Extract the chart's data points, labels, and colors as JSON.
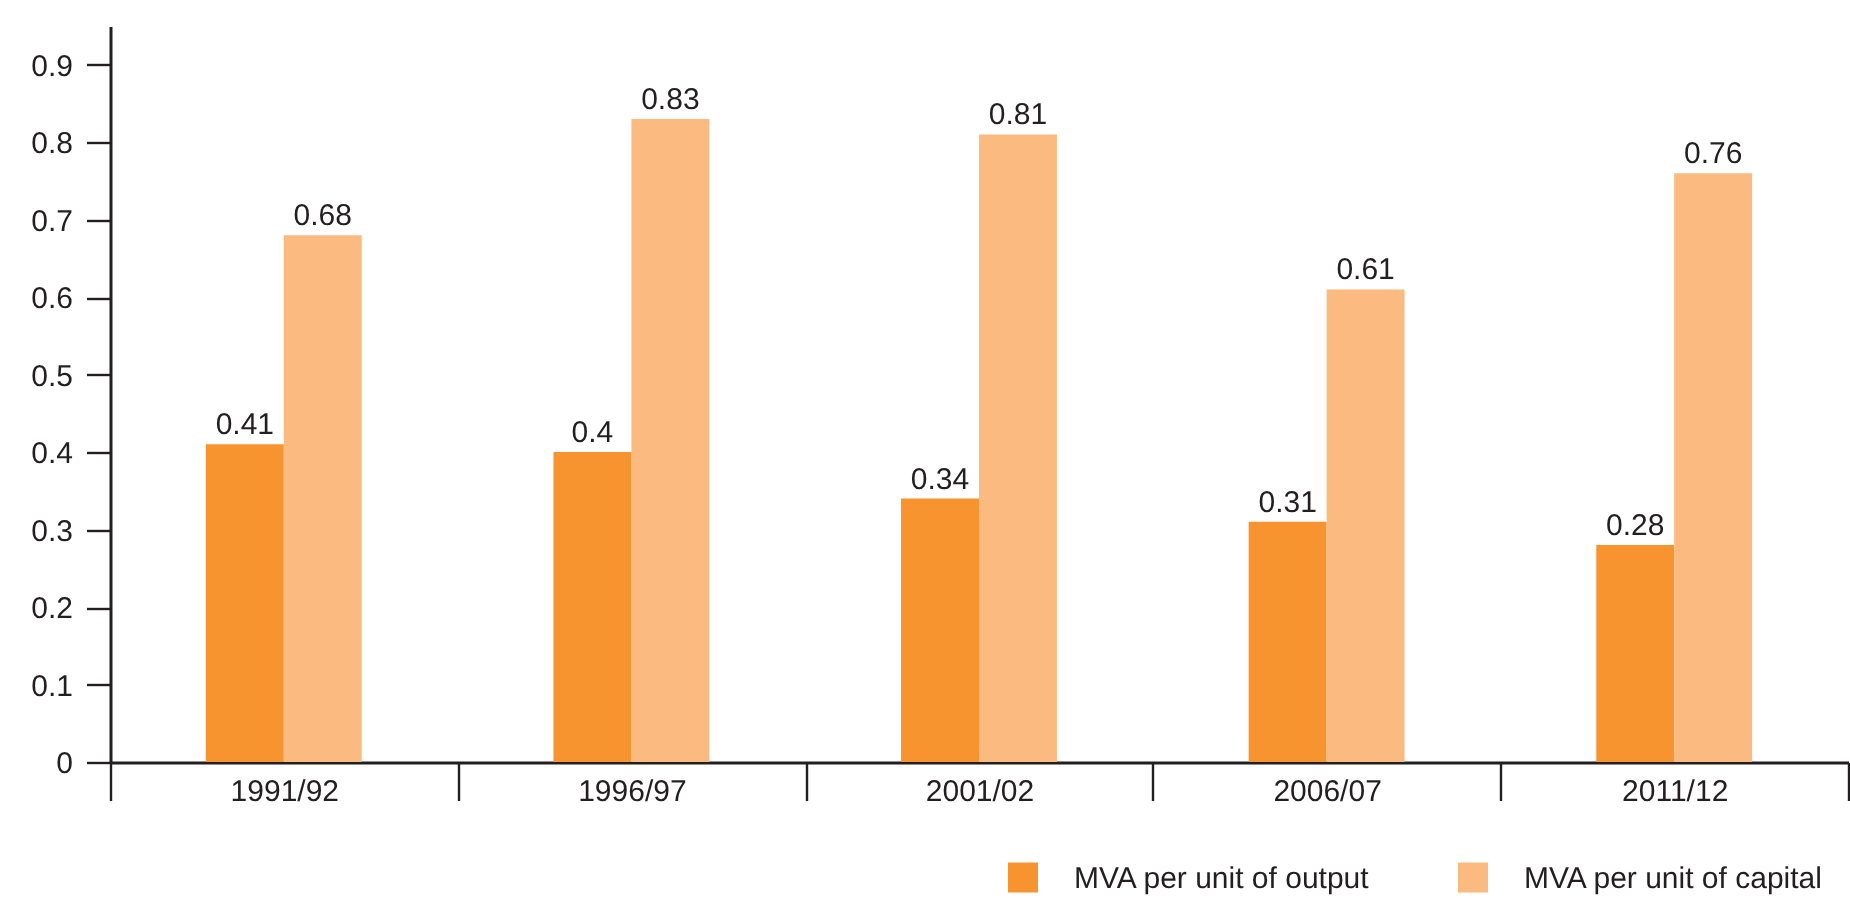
{
  "chart_data": {
    "type": "bar",
    "categories": [
      "1991/92",
      "1996/97",
      "2001/02",
      "2006/07",
      "2011/12"
    ],
    "series": [
      {
        "name": "MVA per unit of output",
        "color": "#f7942f",
        "values": [
          0.41,
          0.4,
          0.34,
          0.31,
          0.28
        ]
      },
      {
        "name": "MVA per unit of capital",
        "color": "#fbba7f",
        "values": [
          0.68,
          0.83,
          0.81,
          0.61,
          0.76
        ]
      }
    ],
    "ylim": [
      0,
      0.95
    ],
    "yticks": [
      {
        "value": 0,
        "label": "0"
      },
      0.1,
      0.2,
      0.3,
      0.4,
      0.5,
      0.6,
      0.7,
      0.8,
      0.9
    ],
    "data_labels": true,
    "legend": "bottom right"
  }
}
